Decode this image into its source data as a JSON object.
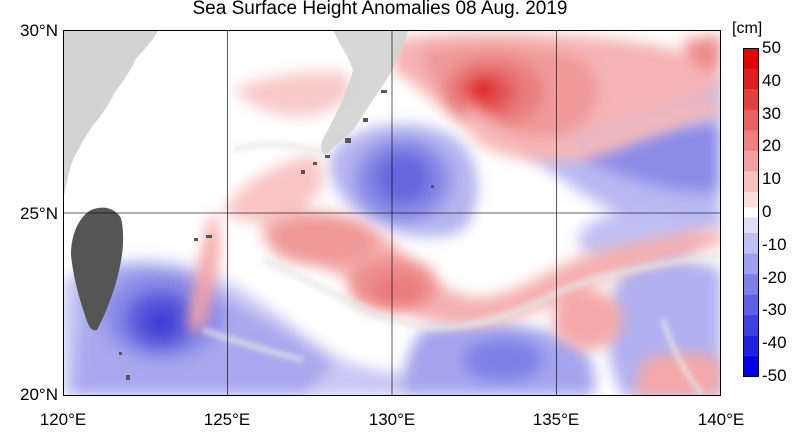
{
  "title": "Sea Surface Height Anomalies  08 Aug. 2019",
  "map": {
    "lon_range": [
      120,
      140
    ],
    "lat_range": [
      20,
      30
    ],
    "lat_labels": [
      "30°N",
      "25°N",
      "20°N"
    ],
    "lon_labels": [
      "120°E",
      "125°E",
      "130°E",
      "135°E",
      "140°E"
    ],
    "grid": true
  },
  "colorbar": {
    "unit": "[cm]",
    "ticks": [
      "50",
      "40",
      "30",
      "20",
      "10",
      "0",
      "-10",
      "-20",
      "-30",
      "-40",
      "-50"
    ],
    "range": [
      -50,
      50
    ],
    "colors": {
      "positive": [
        "#fbdede",
        "#f8c0c0",
        "#f4a0a0",
        "#ee8080",
        "#e86060",
        "#e24040",
        "#dc2020",
        "#e60000"
      ],
      "negative": [
        "#dedefb",
        "#c0c0f6",
        "#a0a0f0",
        "#8080ea",
        "#6060e6",
        "#4040e2",
        "#2020e0",
        "#0000e6"
      ],
      "land": "#d3d3d3",
      "taiwan": "#555555"
    }
  }
}
